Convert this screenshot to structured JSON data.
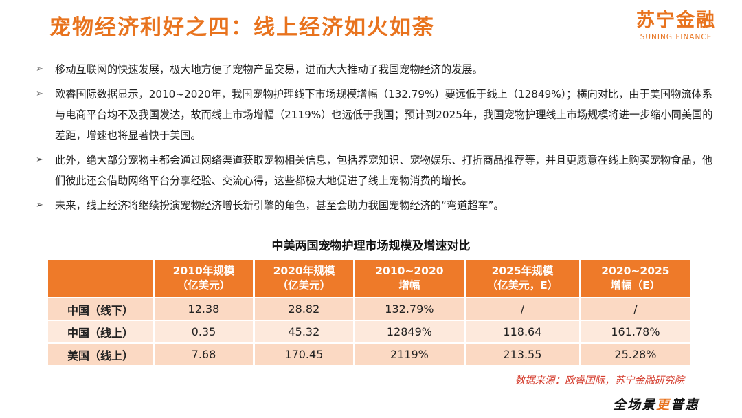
{
  "header": {
    "title": "宠物经济利好之四：线上经济如火如荼",
    "logo_cn": "苏宁金融",
    "logo_en": "SUNING FINANCE"
  },
  "bullets": [
    "移动互联网的快速发展，极大地方便了宠物产品交易，进而大大推动了我国宠物经济的发展。",
    "欧睿国际数据显示，2010~2020年，我国宠物护理线下市场规模增幅（132.79%）要远低于线上（12849%）；横向对比，由于美国物流体系与电商平台均不及我国发达，故而线上市场增幅（2119%）也远低于我国；预计到2025年，我国宠物护理线上市场规模将进一步缩小同美国的差距，增速也将显著快于美国。",
    "此外，绝大部分宠物主都会通过网络渠道获取宠物相关信息，包括养宠知识、宠物娱乐、打折商品推荐等，并且更愿意在线上购买宠物食品，他们彼此还会借助网络平台分享经验、交流心得，这些都极大地促进了线上宠物消费的增长。",
    "未来，线上经济将继续扮演宠物经济增长新引擎的角色，甚至会助力我国宠物经济的“弯道超车”。"
  ],
  "table": {
    "title": "中美两国宠物护理市场规模及增速对比",
    "headers": [
      {
        "l1": "",
        "l2": ""
      },
      {
        "l1": "2010年规模",
        "l2": "（亿美元）"
      },
      {
        "l1": "2020年规模",
        "l2": "（亿美元）"
      },
      {
        "l1": "2010~2020",
        "l2": "增幅"
      },
      {
        "l1": "2025年规模",
        "l2": "（亿美元，E）"
      },
      {
        "l1": "2020~2025",
        "l2": "增幅（E）"
      }
    ],
    "rows": [
      [
        "中国（线下）",
        "12.38",
        "28.82",
        "132.79%",
        "/",
        "/"
      ],
      [
        "中国（线上）",
        "0.35",
        "45.32",
        "12849%",
        "118.64",
        "161.78%"
      ],
      [
        "美国（线上）",
        "7.68",
        "170.45",
        "2119%",
        "213.55",
        "25.28%"
      ]
    ],
    "source": "数据来源：欧睿国际，苏宁金融研究院"
  },
  "footer": {
    "slogan_a": "全场景",
    "slogan_b": "更",
    "slogan_c": "普惠"
  }
}
